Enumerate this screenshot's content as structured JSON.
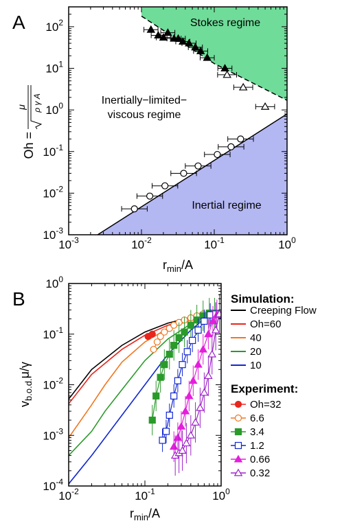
{
  "chart_data": [
    {
      "panel": "A",
      "type": "scatter",
      "xlabel": "r_min/A",
      "ylabel": "Oh = μ/√(ργA)",
      "xscale": "log",
      "yscale": "log",
      "xlim": [
        0.001,
        1.0
      ],
      "ylim": [
        0.001,
        300
      ],
      "x_tick_labels": [
        "10^-3",
        "10^-2",
        "10^-1",
        "10^0"
      ],
      "y_tick_labels": [
        "10^-3",
        "10^-2",
        "10^-1",
        "10^0",
        "10^1",
        "10^2"
      ],
      "regions": [
        {
          "name": "Stokes regime",
          "color": "#6fdc99"
        },
        {
          "name": "Inertially-limited-viscous regime",
          "color": "#ffffff"
        },
        {
          "name": "Inertial regime",
          "color": "#b3b7f2"
        }
      ],
      "boundaries": [
        {
          "style": "dashed",
          "points": [
            [
              0.01,
              180
            ],
            [
              0.1,
              13
            ],
            [
              1.0,
              1.7
            ]
          ]
        },
        {
          "style": "solid",
          "points": [
            [
              0.0025,
              0.001
            ],
            [
              1.0,
              0.8
            ]
          ]
        }
      ],
      "series": [
        {
          "marker": "filled-triangle",
          "points": [
            [
              0.0135,
              85
            ],
            [
              0.017,
              62
            ],
            [
              0.02,
              55
            ],
            [
              0.023,
              72
            ],
            [
              0.028,
              52
            ],
            [
              0.032,
              52
            ],
            [
              0.037,
              44
            ],
            [
              0.045,
              40
            ],
            [
              0.055,
              32
            ],
            [
              0.065,
              26
            ],
            [
              0.08,
              18
            ],
            [
              0.14,
              10
            ]
          ],
          "xerr_factor": 1.25
        },
        {
          "marker": "open-triangle",
          "points": [
            [
              0.15,
              7
            ],
            [
              0.25,
              3.5
            ],
            [
              0.5,
              1.2
            ]
          ],
          "xerr_factor": 1.35
        },
        {
          "marker": "open-circle",
          "points": [
            [
              0.008,
              0.0042
            ],
            [
              0.013,
              0.0085
            ],
            [
              0.021,
              0.015
            ],
            [
              0.038,
              0.03
            ],
            [
              0.06,
              0.045
            ],
            [
              0.11,
              0.085
            ],
            [
              0.17,
              0.13
            ],
            [
              0.23,
              0.2
            ]
          ],
          "xerr_factor": 1.5
        }
      ]
    },
    {
      "panel": "B",
      "type": "line",
      "xlabel": "r_min/A",
      "ylabel": "v_b.o.d.μ/γ",
      "xscale": "log",
      "yscale": "log",
      "xlim": [
        0.01,
        1.0
      ],
      "ylim": [
        0.0001,
        1.0
      ],
      "x_tick_labels": [
        "10^-2",
        "10^-1",
        "10^0"
      ],
      "y_tick_labels": [
        "10^-4",
        "10^-3",
        "10^-2",
        "10^-1",
        "10^0"
      ],
      "legend_sim_title": "Simulation:",
      "legend_exp_title": "Experiment:",
      "simulation": [
        {
          "name": "Creeping Flow",
          "color": "#000000",
          "x": [
            0.01,
            0.02,
            0.05,
            0.1,
            0.2,
            0.4,
            0.6,
            0.8,
            1.0
          ],
          "y": [
            0.0052,
            0.02,
            0.06,
            0.11,
            0.165,
            0.215,
            0.245,
            0.25,
            0.2
          ]
        },
        {
          "name": "Oh=60",
          "color": "#e8261e",
          "x": [
            0.01,
            0.02,
            0.05,
            0.1,
            0.2,
            0.4,
            0.6,
            0.8,
            1.0
          ],
          "y": [
            0.0042,
            0.016,
            0.05,
            0.095,
            0.15,
            0.205,
            0.24,
            0.245,
            0.2
          ]
        },
        {
          "name": "40",
          "color": "#f0761e",
          "x": [
            0.01,
            0.02,
            0.03,
            0.05,
            0.1,
            0.2,
            0.4,
            0.6,
            0.8,
            1.0
          ],
          "y": [
            0.0009,
            0.004,
            0.01,
            0.028,
            0.07,
            0.13,
            0.19,
            0.23,
            0.24,
            0.2
          ]
        },
        {
          "name": "20",
          "color": "#2a9a2a",
          "x": [
            0.01,
            0.02,
            0.03,
            0.05,
            0.1,
            0.2,
            0.4,
            0.6,
            0.8,
            1.0
          ],
          "y": [
            0.0004,
            0.0012,
            0.003,
            0.008,
            0.03,
            0.08,
            0.16,
            0.215,
            0.24,
            0.2
          ]
        },
        {
          "name": "10",
          "color": "#1026d0",
          "x": [
            0.01,
            0.02,
            0.03,
            0.05,
            0.1,
            0.2,
            0.4,
            0.6,
            0.8,
            1.0
          ],
          "y": [
            0.00011,
            0.0004,
            0.0009,
            0.0025,
            0.01,
            0.04,
            0.12,
            0.2,
            0.24,
            0.2
          ]
        }
      ],
      "experiment": [
        {
          "name": "Oh=32",
          "color": "#e8261e",
          "marker": "filled-circle",
          "x": [
            0.11,
            0.125
          ],
          "y": [
            0.09,
            0.1
          ]
        },
        {
          "name": "6.6",
          "color": "#f0761e",
          "marker": "open-circle",
          "x": [
            0.13,
            0.145,
            0.16,
            0.18,
            0.21,
            0.24,
            0.28,
            0.33,
            0.4,
            0.48,
            0.58,
            0.7,
            0.82
          ],
          "y": [
            0.05,
            0.07,
            0.09,
            0.11,
            0.13,
            0.15,
            0.17,
            0.19,
            0.21,
            0.23,
            0.25,
            0.26,
            0.25
          ]
        },
        {
          "name": "3.4",
          "color": "#2a9a2a",
          "marker": "filled-square",
          "x": [
            0.125,
            0.14,
            0.16,
            0.18,
            0.21,
            0.24,
            0.28,
            0.33,
            0.4,
            0.48,
            0.58,
            0.7,
            0.82
          ],
          "y": [
            0.002,
            0.006,
            0.014,
            0.025,
            0.04,
            0.06,
            0.085,
            0.11,
            0.15,
            0.19,
            0.23,
            0.26,
            0.26
          ],
          "yerr_factor": 2.0
        },
        {
          "name": "1.2",
          "color": "#1026d0",
          "marker": "open-square",
          "x": [
            0.17,
            0.19,
            0.21,
            0.24,
            0.27,
            0.31,
            0.36,
            0.42,
            0.5,
            0.6,
            0.72,
            0.85
          ],
          "y": [
            0.0008,
            0.0012,
            0.0025,
            0.006,
            0.012,
            0.025,
            0.045,
            0.075,
            0.12,
            0.18,
            0.24,
            0.25
          ],
          "yerr_factor": 1.7
        },
        {
          "name": "0.66",
          "color": "#e41fdc",
          "marker": "filled-triangle",
          "x": [
            0.24,
            0.27,
            0.3,
            0.34,
            0.38,
            0.43,
            0.5,
            0.58,
            0.68,
            0.78,
            0.88
          ],
          "y": [
            0.0006,
            0.0009,
            0.0015,
            0.003,
            0.006,
            0.012,
            0.025,
            0.05,
            0.1,
            0.18,
            0.24
          ],
          "yerr_factor": 2.0
        },
        {
          "name": "0.32",
          "color": "#9e22c8",
          "marker": "open-triangle",
          "x": [
            0.25,
            0.28,
            0.31,
            0.35,
            0.4,
            0.46,
            0.53,
            0.6,
            0.68,
            0.76,
            0.85,
            0.95
          ],
          "y": [
            0.0004,
            0.00045,
            0.0005,
            0.0007,
            0.001,
            0.0018,
            0.0035,
            0.007,
            0.015,
            0.04,
            0.12,
            0.25
          ],
          "yerr_factor": 2.5
        }
      ]
    }
  ],
  "panel_labels": [
    "A",
    "B"
  ],
  "axes_a": {
    "xlabel_main": "r",
    "xlabel_sub": "min",
    "xlabel_tail": "/A",
    "ylabel_prefix": "Oh =",
    "ylabel_num": "μ",
    "ylabel_den": "ρ γ A"
  },
  "axes_b": {
    "xlabel_main": "r",
    "xlabel_sub": "min",
    "xlabel_tail": "/A",
    "ylabel_main": "v",
    "ylabel_sub": "b.o.d.",
    "ylabel_tail": "μ/γ"
  },
  "region_labels": {
    "stokes": "Stokes regime",
    "ilv_line1": "Inertially−limited−",
    "ilv_line2": "viscous regime",
    "inertial": "Inertial regime"
  }
}
